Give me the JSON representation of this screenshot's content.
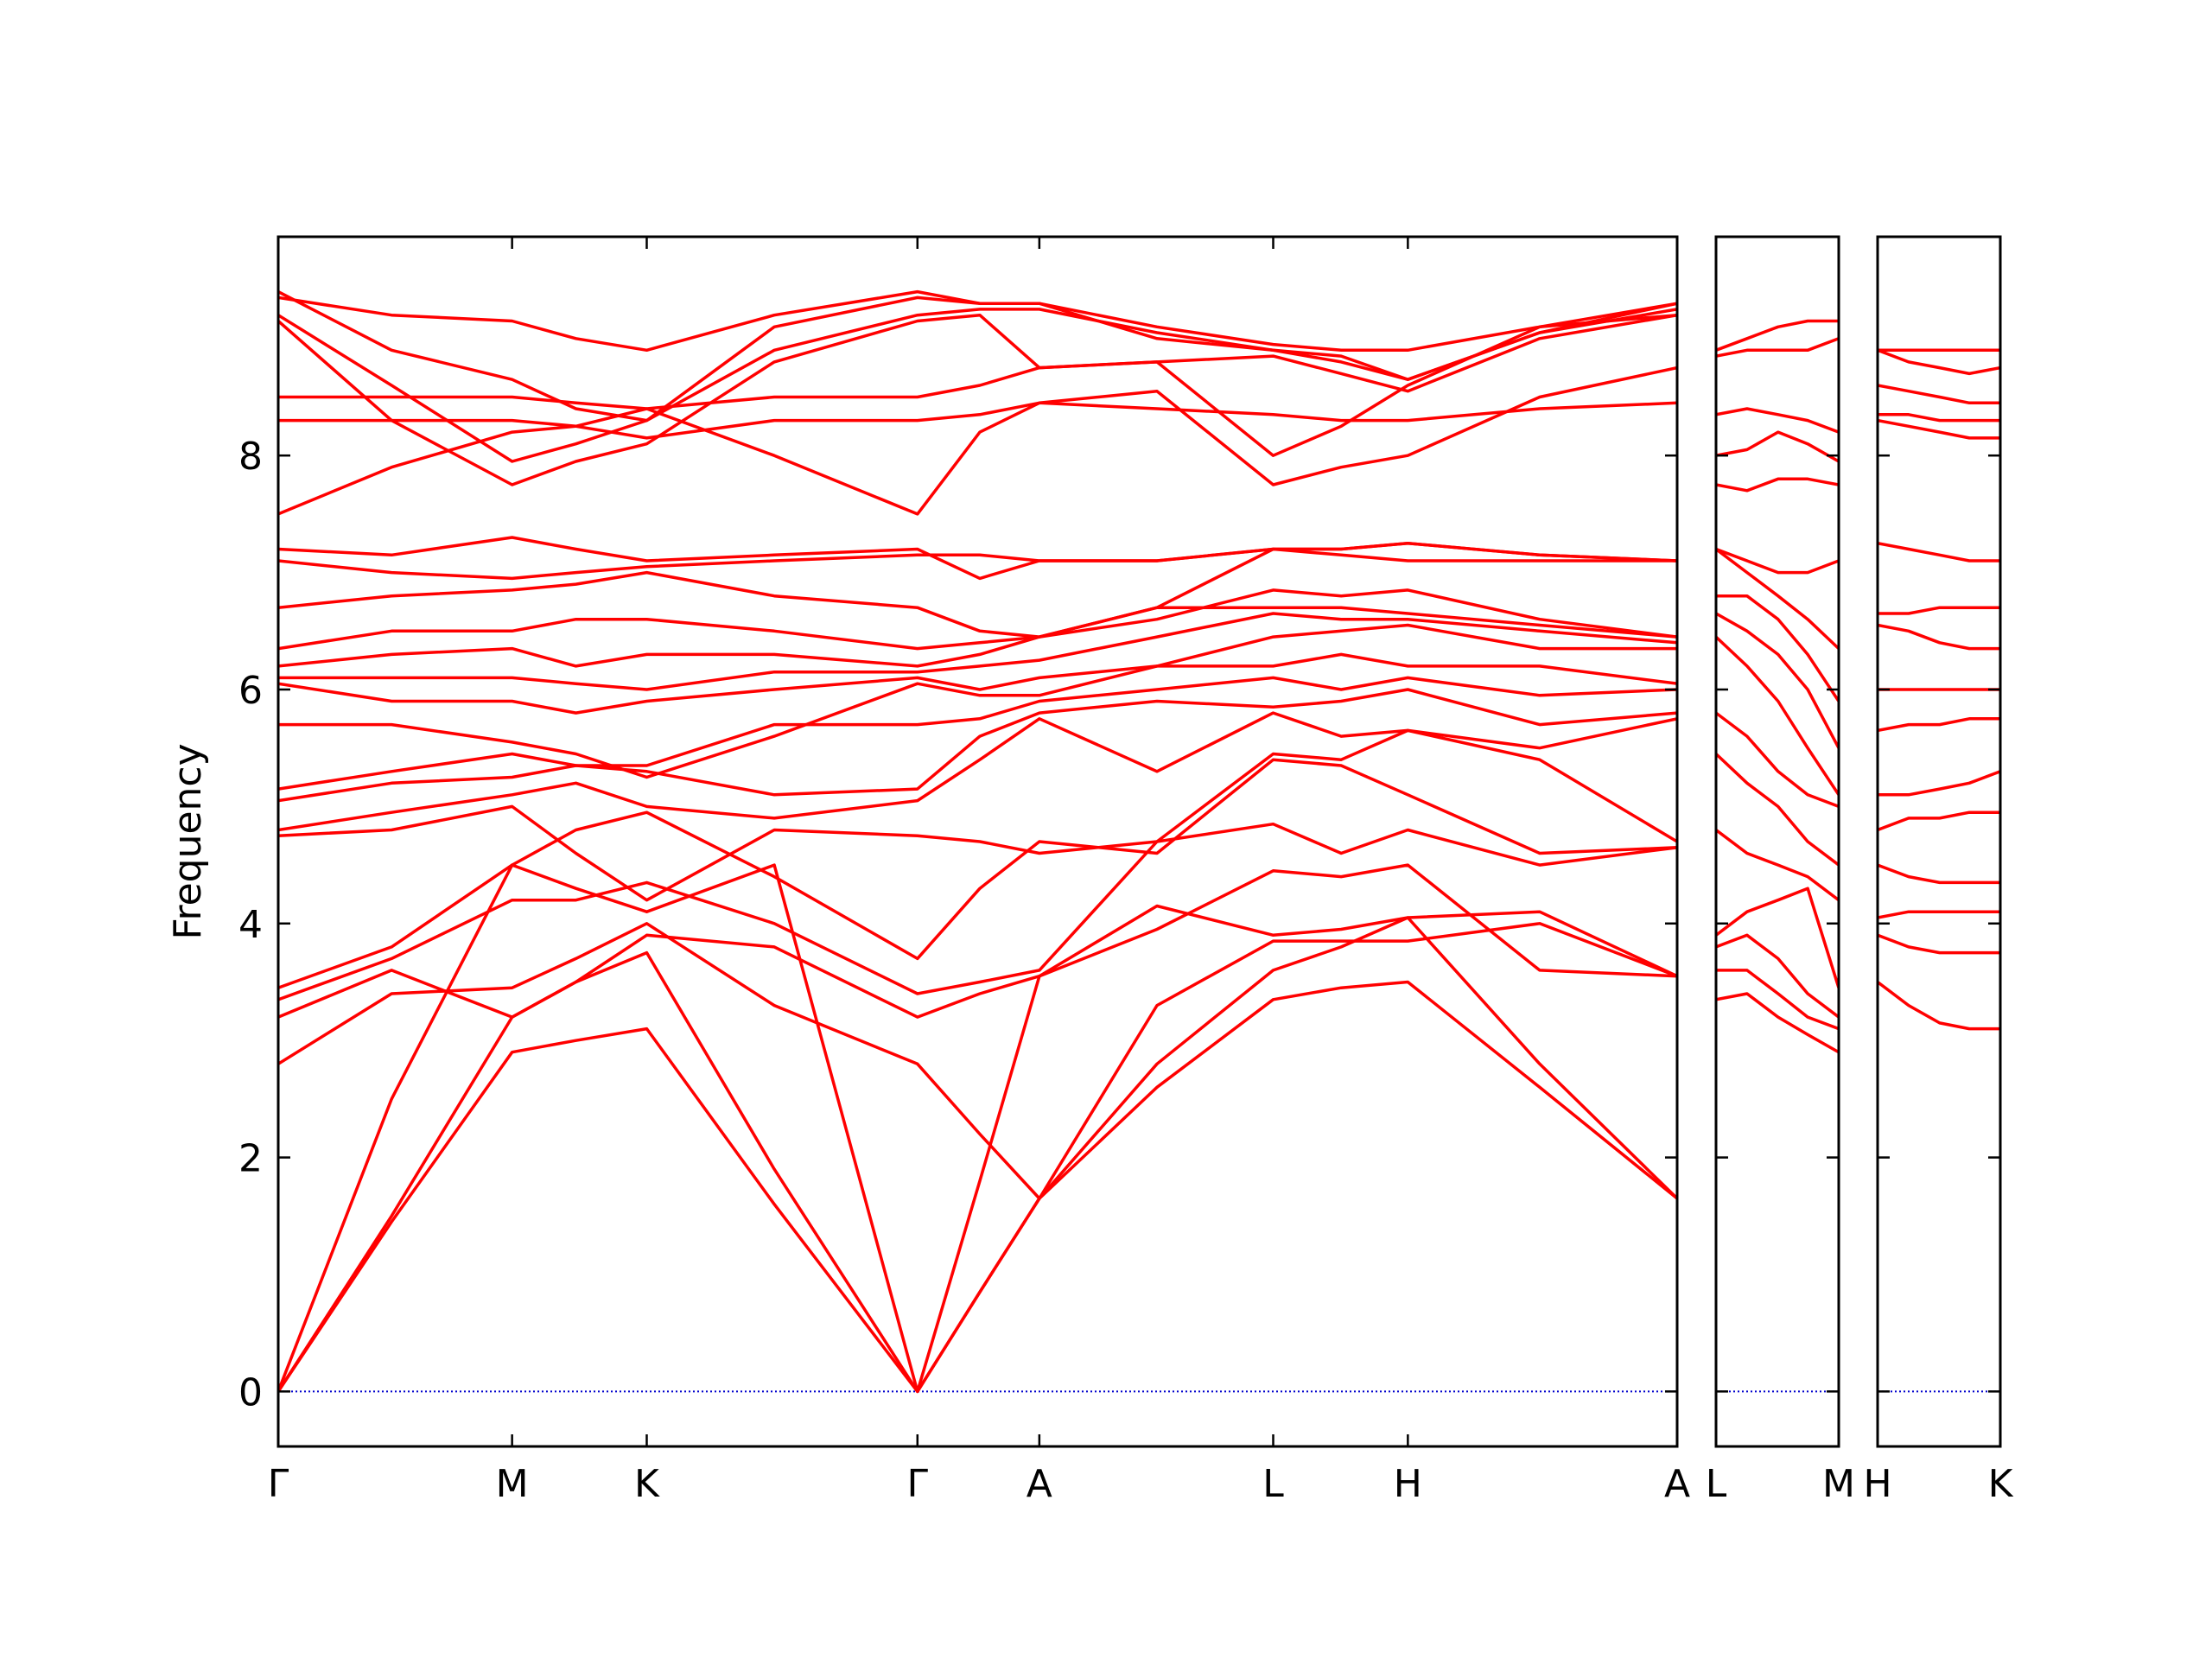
{
  "chart_data": [
    {
      "type": "line",
      "ylabel": "Frequency",
      "color": "#ff0000",
      "show_ytick_labels": true,
      "zero_line": {
        "value": 0,
        "color": "#0000cc"
      },
      "x": [
        0,
        0.8,
        1.65,
        2.1,
        2.6,
        3.5,
        4.51,
        4.95,
        5.37,
        6.2,
        7.02,
        7.5,
        7.97,
        8.9,
        9.87
      ],
      "xlim": [
        0,
        9.87
      ],
      "ylim": [
        -0.47,
        9.87
      ],
      "xticks": [
        {
          "value": 0,
          "label": "Γ"
        },
        {
          "value": 1.65,
          "label": "M"
        },
        {
          "value": 2.6,
          "label": "K"
        },
        {
          "value": 4.51,
          "label": "Γ"
        },
        {
          "value": 5.37,
          "label": "A"
        },
        {
          "value": 7.02,
          "label": "L"
        },
        {
          "value": 7.97,
          "label": "H"
        },
        {
          "value": 9.87,
          "label": "A"
        }
      ],
      "yticks": [
        0,
        2,
        4,
        6,
        8
      ],
      "series": [
        {
          "values": [
            0,
            1.45,
            2.9,
            3.0,
            3.1,
            1.6,
            0,
            0.85,
            1.65,
            2.6,
            3.35,
            3.45,
            3.5,
            2.6,
            1.65
          ]
        },
        {
          "values": [
            0,
            1.5,
            3.2,
            3.5,
            3.75,
            1.9,
            0,
            0.85,
            1.65,
            2.8,
            3.6,
            3.8,
            4.05,
            2.8,
            1.65
          ]
        },
        {
          "values": [
            0,
            2.5,
            4.5,
            4.3,
            4.1,
            4.5,
            0,
            1.8,
            3.55,
            4.15,
            3.9,
            3.95,
            4.05,
            4.1,
            3.55
          ]
        },
        {
          "values": [
            2.8,
            3.4,
            3.45,
            3.7,
            4.0,
            3.3,
            2.8,
            2.2,
            1.65,
            3.3,
            3.85,
            3.85,
            3.85,
            4.0,
            3.55
          ]
        },
        {
          "values": [
            3.2,
            3.6,
            3.2,
            3.5,
            3.9,
            3.8,
            3.2,
            3.4,
            3.55,
            3.95,
            4.45,
            4.4,
            4.5,
            3.6,
            3.55
          ]
        },
        {
          "values": [
            3.35,
            3.7,
            4.2,
            4.2,
            4.35,
            4.0,
            3.4,
            3.5,
            3.6,
            4.7,
            4.85,
            4.6,
            4.8,
            4.5,
            4.65
          ]
        },
        {
          "values": [
            3.45,
            3.8,
            4.5,
            4.8,
            4.95,
            4.4,
            3.7,
            4.3,
            4.7,
            4.6,
            5.4,
            5.35,
            5.1,
            4.6,
            4.65
          ]
        },
        {
          "values": [
            4.75,
            4.8,
            5.0,
            4.6,
            4.2,
            4.8,
            4.75,
            4.7,
            4.6,
            4.7,
            5.45,
            5.4,
            5.65,
            5.4,
            4.7
          ]
        },
        {
          "values": [
            4.8,
            4.95,
            5.1,
            5.2,
            5.0,
            4.9,
            5.05,
            5.4,
            5.75,
            5.3,
            5.8,
            5.6,
            5.65,
            5.5,
            5.75
          ]
        },
        {
          "values": [
            5.05,
            5.2,
            5.25,
            5.35,
            5.3,
            5.1,
            5.15,
            5.6,
            5.8,
            5.9,
            5.85,
            5.9,
            6.0,
            5.7,
            5.8
          ]
        },
        {
          "values": [
            5.15,
            5.3,
            5.45,
            5.35,
            5.35,
            5.7,
            5.7,
            5.75,
            5.9,
            6.0,
            6.1,
            6.0,
            6.1,
            5.95,
            6.0
          ]
        },
        {
          "values": [
            5.7,
            5.7,
            5.55,
            5.45,
            5.25,
            5.6,
            6.05,
            5.95,
            5.95,
            6.2,
            6.2,
            6.3,
            6.2,
            6.2,
            6.05
          ]
        },
        {
          "values": [
            6.05,
            5.9,
            5.9,
            5.8,
            5.9,
            6.0,
            6.1,
            6.0,
            6.1,
            6.2,
            6.45,
            6.5,
            6.55,
            6.35,
            6.35
          ]
        },
        {
          "values": [
            6.1,
            6.1,
            6.1,
            6.05,
            6.0,
            6.15,
            6.15,
            6.2,
            6.25,
            6.45,
            6.65,
            6.6,
            6.6,
            6.5,
            6.4
          ]
        },
        {
          "values": [
            6.2,
            6.3,
            6.35,
            6.2,
            6.3,
            6.3,
            6.2,
            6.3,
            6.45,
            6.7,
            6.7,
            6.7,
            6.65,
            6.55,
            6.45
          ]
        },
        {
          "values": [
            6.35,
            6.5,
            6.5,
            6.6,
            6.6,
            6.5,
            6.35,
            6.4,
            6.45,
            6.6,
            6.85,
            6.8,
            6.85,
            6.6,
            6.45
          ]
        },
        {
          "values": [
            6.7,
            6.8,
            6.85,
            6.9,
            7.0,
            6.8,
            6.7,
            6.5,
            6.45,
            6.7,
            7.2,
            7.15,
            7.1,
            7.1,
            7.1
          ]
        },
        {
          "values": [
            7.1,
            7.0,
            6.95,
            7.0,
            7.05,
            7.1,
            7.15,
            7.15,
            7.1,
            7.1,
            7.2,
            7.2,
            7.25,
            7.15,
            7.1
          ]
        },
        {
          "values": [
            7.2,
            7.15,
            7.3,
            7.2,
            7.1,
            7.15,
            7.2,
            6.95,
            7.1,
            7.1,
            7.2,
            7.2,
            7.25,
            7.15,
            7.1
          ]
        },
        {
          "values": [
            7.5,
            7.9,
            8.2,
            8.25,
            8.4,
            8.0,
            7.5,
            8.2,
            8.45,
            8.4,
            8.35,
            8.3,
            8.3,
            8.4,
            8.45
          ]
        },
        {
          "values": [
            8.3,
            8.3,
            8.3,
            8.25,
            8.15,
            8.3,
            8.3,
            8.35,
            8.45,
            8.55,
            7.75,
            7.9,
            8.0,
            8.5,
            8.75
          ]
        },
        {
          "values": [
            8.5,
            8.5,
            8.5,
            8.45,
            8.4,
            8.5,
            8.5,
            8.6,
            8.75,
            8.8,
            8.0,
            8.25,
            8.6,
            9.1,
            9.2
          ]
        },
        {
          "values": [
            9.15,
            8.3,
            7.75,
            7.95,
            8.1,
            8.8,
            9.15,
            9.2,
            8.75,
            8.8,
            8.85,
            8.7,
            8.55,
            9.0,
            9.2
          ]
        },
        {
          "values": [
            9.2,
            8.6,
            7.95,
            8.1,
            8.3,
            8.9,
            9.2,
            9.25,
            9.25,
            9.05,
            8.9,
            8.85,
            8.65,
            9.05,
            9.3
          ]
        },
        {
          "values": [
            9.35,
            9.2,
            9.15,
            9.0,
            8.9,
            9.2,
            9.4,
            9.3,
            9.3,
            9.1,
            8.95,
            8.9,
            8.9,
            9.1,
            9.3
          ]
        },
        {
          "values": [
            9.4,
            8.9,
            8.65,
            8.4,
            8.3,
            9.1,
            9.35,
            9.3,
            9.3,
            9.0,
            8.9,
            8.8,
            8.65,
            9.05,
            9.25
          ]
        }
      ]
    },
    {
      "type": "line",
      "color": "#ff0000",
      "show_ytick_labels": false,
      "zero_line": {
        "value": 0,
        "color": "#0000cc"
      },
      "x": [
        0,
        0.22,
        0.44,
        0.65,
        0.87
      ],
      "xlim": [
        0,
        0.87
      ],
      "ylim": [
        -0.47,
        9.87
      ],
      "xticks": [
        {
          "value": 0,
          "label": "L"
        },
        {
          "value": 0.87,
          "label": "M"
        }
      ],
      "yticks": [
        0,
        2,
        4,
        6,
        8
      ],
      "series": [
        {
          "values": [
            3.35,
            3.4,
            3.2,
            3.05,
            2.9
          ]
        },
        {
          "values": [
            3.6,
            3.6,
            3.4,
            3.2,
            3.1
          ]
        },
        {
          "values": [
            3.8,
            3.9,
            3.7,
            3.4,
            3.2
          ]
        },
        {
          "values": [
            3.9,
            4.1,
            4.2,
            4.3,
            3.45
          ]
        },
        {
          "values": [
            4.8,
            4.6,
            4.5,
            4.4,
            4.2
          ]
        },
        {
          "values": [
            5.45,
            5.2,
            5.0,
            4.7,
            4.5
          ]
        },
        {
          "values": [
            5.8,
            5.6,
            5.3,
            5.1,
            5.0
          ]
        },
        {
          "values": [
            6.45,
            6.2,
            5.9,
            5.5,
            5.1
          ]
        },
        {
          "values": [
            6.65,
            6.5,
            6.3,
            6.0,
            5.5
          ]
        },
        {
          "values": [
            6.8,
            6.8,
            6.6,
            6.3,
            5.9
          ]
        },
        {
          "values": [
            7.2,
            7.0,
            6.8,
            6.6,
            6.35
          ]
        },
        {
          "values": [
            7.2,
            7.1,
            7.0,
            7.0,
            7.1
          ]
        },
        {
          "values": [
            7.75,
            7.7,
            7.8,
            7.8,
            7.75
          ]
        },
        {
          "values": [
            8.0,
            8.05,
            8.2,
            8.1,
            7.95
          ]
        },
        {
          "values": [
            8.35,
            8.4,
            8.35,
            8.3,
            8.2
          ]
        },
        {
          "values": [
            8.85,
            8.9,
            8.9,
            8.9,
            9.0
          ]
        },
        {
          "values": [
            8.9,
            9.0,
            9.1,
            9.15,
            9.15
          ]
        }
      ]
    },
    {
      "type": "line",
      "color": "#ff0000",
      "show_ytick_labels": false,
      "zero_line": {
        "value": 0,
        "color": "#0000cc"
      },
      "x": [
        0,
        0.22,
        0.44,
        0.65,
        0.87
      ],
      "xlim": [
        0,
        0.87
      ],
      "ylim": [
        -0.47,
        9.87
      ],
      "xticks": [
        {
          "value": 0,
          "label": "H"
        },
        {
          "value": 0.87,
          "label": "K"
        }
      ],
      "yticks": [
        0,
        2,
        4,
        6,
        8
      ],
      "series": [
        {
          "values": [
            3.5,
            3.3,
            3.15,
            3.1,
            3.1
          ]
        },
        {
          "values": [
            3.9,
            3.8,
            3.75,
            3.75,
            3.75
          ]
        },
        {
          "values": [
            4.05,
            4.1,
            4.1,
            4.1,
            4.1
          ]
        },
        {
          "values": [
            4.5,
            4.4,
            4.35,
            4.35,
            4.35
          ]
        },
        {
          "values": [
            4.8,
            4.9,
            4.9,
            4.95,
            4.95
          ]
        },
        {
          "values": [
            5.1,
            5.1,
            5.15,
            5.2,
            5.3
          ]
        },
        {
          "values": [
            5.65,
            5.7,
            5.7,
            5.75,
            5.75
          ]
        },
        {
          "values": [
            6.0,
            6.0,
            6.0,
            6.0,
            6.0
          ]
        },
        {
          "values": [
            6.55,
            6.5,
            6.4,
            6.35,
            6.35
          ]
        },
        {
          "values": [
            6.65,
            6.65,
            6.7,
            6.7,
            6.7
          ]
        },
        {
          "values": [
            7.25,
            7.2,
            7.15,
            7.1,
            7.1
          ]
        },
        {
          "values": [
            8.3,
            8.25,
            8.2,
            8.15,
            8.15
          ]
        },
        {
          "values": [
            8.35,
            8.35,
            8.3,
            8.3,
            8.3
          ]
        },
        {
          "values": [
            8.6,
            8.55,
            8.5,
            8.45,
            8.45
          ]
        },
        {
          "values": [
            8.9,
            8.8,
            8.75,
            8.7,
            8.75
          ]
        },
        {
          "values": [
            8.9,
            8.9,
            8.9,
            8.9,
            8.9
          ]
        }
      ]
    }
  ]
}
